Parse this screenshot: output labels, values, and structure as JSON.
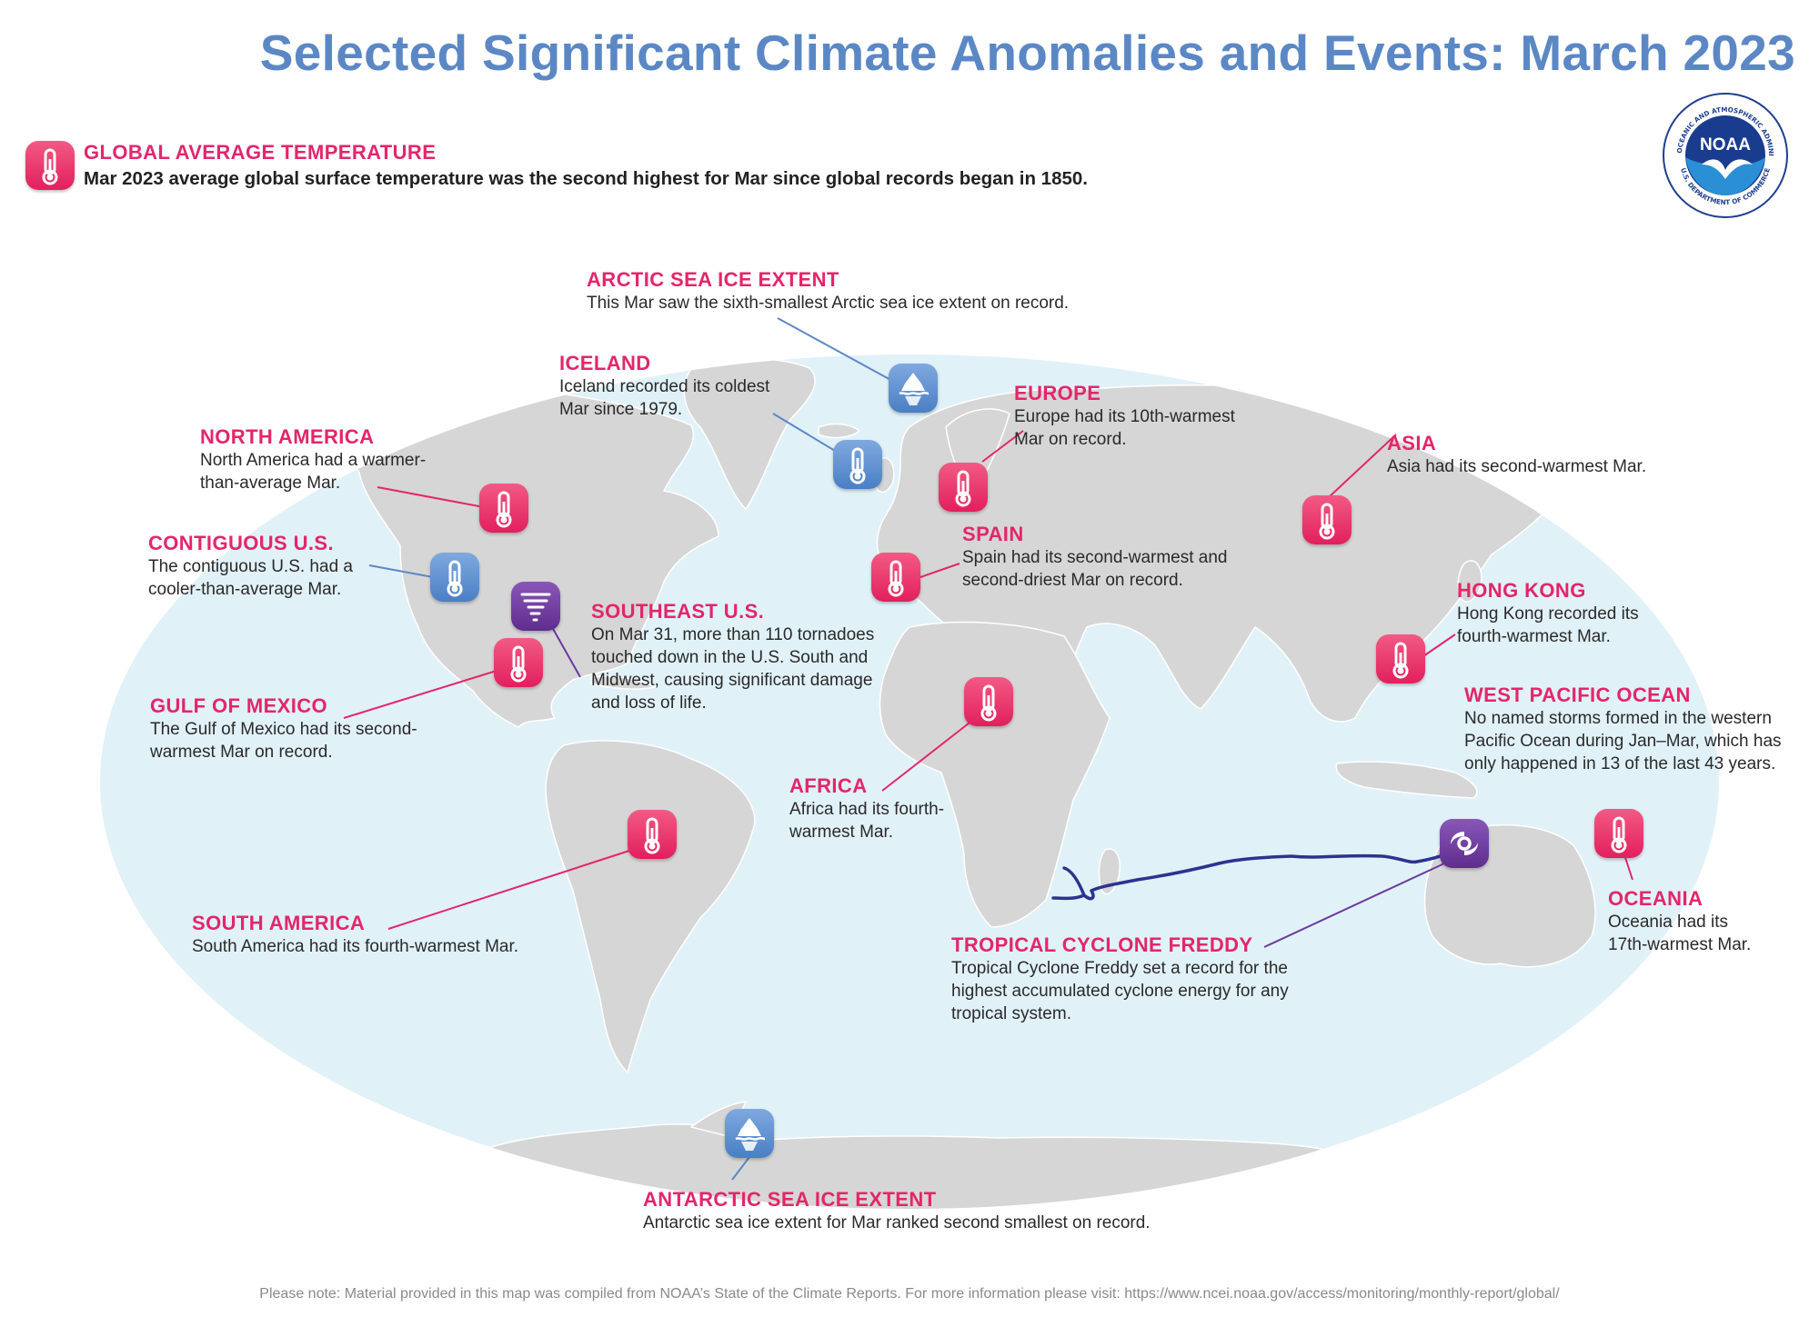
{
  "title": "Selected Significant Climate Anomalies and Events: March 2023",
  "global": {
    "title": "GLOBAL AVERAGE TEMPERATURE",
    "text": "Mar 2023 average global surface temperature was the second highest for Mar since global records began in 1850."
  },
  "logo": {
    "text": "NOAA",
    "ring_text": "NATIONAL OCEANIC AND ATMOSPHERIC ADMINISTRATION",
    "ring_bottom": "U.S. DEPARTMENT OF COMMERCE"
  },
  "colors": {
    "warm": "#e3266a",
    "cold": "#5b88c5",
    "storm": "#6b3a9e",
    "ocean": "#e1f1f8",
    "land": "#d6d6d6",
    "track": "#2b3390"
  },
  "annotations": {
    "arctic": {
      "title": "ARCTIC SEA ICE EXTENT",
      "lines": [
        "This Mar saw the sixth-smallest Arctic sea ice extent on record."
      ],
      "icon": "iceberg-icon",
      "kind": "cold"
    },
    "iceland": {
      "title": "ICELAND",
      "lines": [
        "Iceland recorded its coldest",
        "Mar since 1979."
      ],
      "icon": "thermometer-icon",
      "kind": "cold"
    },
    "europe": {
      "title": "EUROPE",
      "lines": [
        "Europe had its 10th-warmest",
        "Mar on record."
      ],
      "icon": "thermometer-icon",
      "kind": "warm"
    },
    "asia": {
      "title": "ASIA",
      "lines": [
        "Asia had its second-warmest Mar."
      ],
      "icon": "thermometer-icon",
      "kind": "warm"
    },
    "north_america": {
      "title": "NORTH AMERICA",
      "lines": [
        "North America had a warmer-",
        "than-average Mar."
      ],
      "icon": "thermometer-icon",
      "kind": "warm"
    },
    "contiguous_us": {
      "title": "CONTIGUOUS U.S.",
      "lines": [
        "The contiguous U.S. had a",
        "cooler-than-average Mar."
      ],
      "icon": "thermometer-icon",
      "kind": "cold"
    },
    "spain": {
      "title": "SPAIN",
      "lines": [
        "Spain had its second-warmest and",
        "second-driest Mar on record."
      ],
      "icon": "thermometer-icon",
      "kind": "warm"
    },
    "southeast_us": {
      "title": "SOUTHEAST U.S.",
      "lines": [
        "On Mar 31, more than 110 tornadoes",
        "touched down in the U.S. South and",
        "Midwest, causing significant damage",
        "and loss of life."
      ],
      "icon": "tornado-icon",
      "kind": "storm"
    },
    "hong_kong": {
      "title": "HONG KONG",
      "lines": [
        "Hong Kong recorded its",
        "fourth-warmest Mar."
      ],
      "icon": "thermometer-icon",
      "kind": "warm"
    },
    "west_pacific": {
      "title": "WEST PACIFIC OCEAN",
      "lines": [
        "No named storms formed in the western",
        "Pacific Ocean during Jan–Mar, which has",
        "only happened in 13 of the last 43 years."
      ]
    },
    "gulf_of_mexico": {
      "title": "GULF OF MEXICO",
      "lines": [
        "The Gulf of Mexico had its second-",
        "warmest Mar on record."
      ],
      "icon": "thermometer-icon",
      "kind": "warm"
    },
    "africa": {
      "title": "AFRICA",
      "lines": [
        "Africa had its fourth-",
        "warmest Mar."
      ],
      "icon": "thermometer-icon",
      "kind": "warm"
    },
    "south_america": {
      "title": "SOUTH AMERICA",
      "lines": [
        "South America had its fourth-warmest Mar."
      ],
      "icon": "thermometer-icon",
      "kind": "warm"
    },
    "oceania": {
      "title": "OCEANIA",
      "lines": [
        "Oceania had its",
        "17th-warmest Mar."
      ],
      "icon": "thermometer-icon",
      "kind": "warm"
    },
    "freddy": {
      "title": "TROPICAL CYCLONE FREDDY",
      "lines": [
        "Tropical Cyclone Freddy set a record for the",
        "highest accumulated cyclone energy for any",
        "tropical system."
      ],
      "icon": "cyclone-icon",
      "kind": "storm"
    },
    "antarctic": {
      "title": "ANTARCTIC SEA ICE EXTENT",
      "lines": [
        "Antarctic sea ice extent for Mar ranked second smallest on record."
      ],
      "icon": "iceberg-icon",
      "kind": "cold"
    }
  },
  "footer": "Please note: Material provided in this map was compiled from NOAA’s State of the Climate Reports. For more information please visit: https://www.ncei.noaa.gov/access/monitoring/monthly-report/global/"
}
